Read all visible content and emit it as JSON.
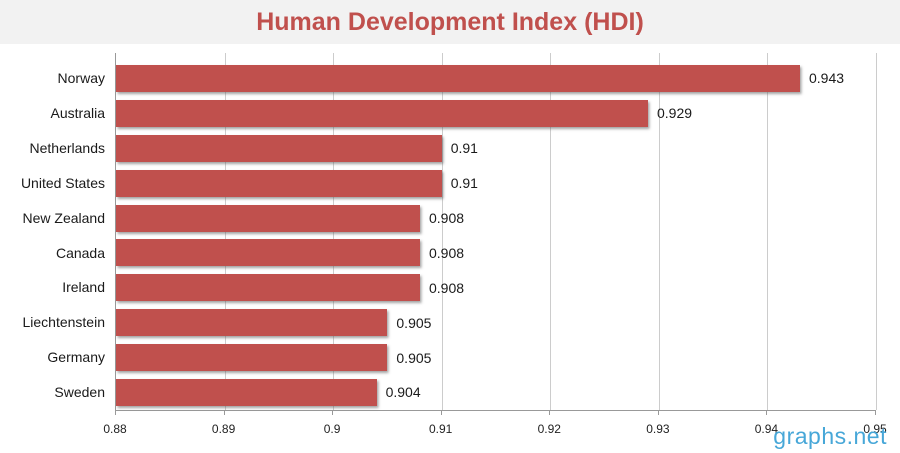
{
  "header": {
    "title": "Human Development Index (HDI)"
  },
  "watermark": "graphs.net",
  "chart_data": {
    "type": "bar",
    "orientation": "horizontal",
    "title": "Human Development Index (HDI)",
    "categories": [
      "Norway",
      "Australia",
      "Netherlands",
      "United States",
      "New Zealand",
      "Canada",
      "Ireland",
      "Liechtenstein",
      "Germany",
      "Sweden"
    ],
    "values": [
      0.943,
      0.929,
      0.91,
      0.91,
      0.908,
      0.908,
      0.908,
      0.905,
      0.905,
      0.904
    ],
    "value_labels": [
      "0.943",
      "0.929",
      "0.91",
      "0.91",
      "0.908",
      "0.908",
      "0.908",
      "0.905",
      "0.905",
      "0.904"
    ],
    "xlabel": "",
    "ylabel": "",
    "xlim": [
      0.88,
      0.95
    ],
    "x_ticks": [
      0.88,
      0.89,
      0.9,
      0.91,
      0.92,
      0.93,
      0.94,
      0.95
    ],
    "x_tick_labels": [
      "0.88",
      "0.89",
      "0.9",
      "0.91",
      "0.92",
      "0.93",
      "0.94",
      "0.95"
    ],
    "grid": true,
    "legend": false,
    "colors": {
      "bar": "#c0504d",
      "title": "#c0504d",
      "header_bg": "#f2f2f2",
      "gridline": "#cccccc",
      "axis": "#999999",
      "text": "#1a1a1a",
      "watermark": "#47a7d8"
    }
  }
}
